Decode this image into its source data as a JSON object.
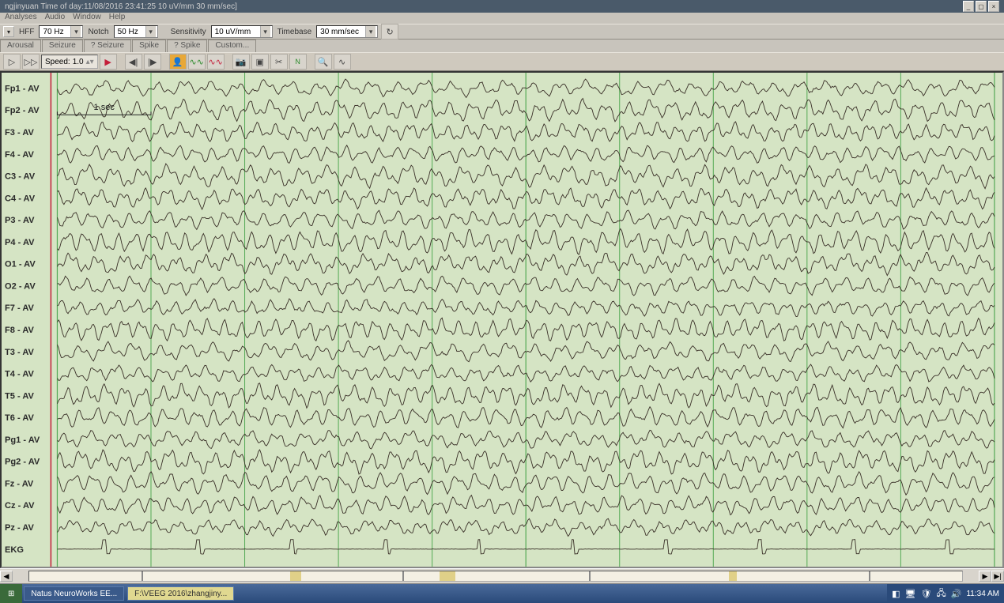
{
  "titlebar": "ngjinyuan  Time of day:11/08/2016 23:41:25  10 uV/mm  30 mm/sec]",
  "menu": [
    "Analyses",
    "Audio",
    "Window",
    "Help"
  ],
  "params": {
    "hff_label": "HFF",
    "hff_value": "70 Hz",
    "notch_label": "Notch",
    "notch_value": "50 Hz",
    "sens_label": "Sensitivity",
    "sens_value": "10 uV/mm",
    "tb_label": "Timebase",
    "tb_value": "30 mm/sec"
  },
  "tabs": [
    "Arousal",
    "Seizure",
    "? Seizure",
    "Spike",
    "? Spike",
    "Custom..."
  ],
  "speed_label": "Speed:",
  "speed_value": "1.0",
  "time_scale_label": "1 sec",
  "eeg": {
    "bg_color": "#d5e4c4",
    "grid_color": "#55aa55",
    "trace_color": "#3a3028",
    "label_font": "11px",
    "n_seconds": 10,
    "channels": [
      "Fp1 - AV",
      "Fp2 - AV",
      "F3 - AV",
      "F4 - AV",
      "C3 - AV",
      "C4 - AV",
      "P3 - AV",
      "P4 - AV",
      "O1 - AV",
      "O2 - AV",
      "F7 - AV",
      "F8 - AV",
      "T3 - AV",
      "T4 - AV",
      "T5 - AV",
      "T6 - AV",
      "Pg1 - AV",
      "Pg2 - AV",
      "Fz - AV",
      "Cz - AV",
      "Pz - AV",
      "EKG"
    ],
    "wave_params": {
      "samples": 700,
      "base_amplitude": 7,
      "freq_low": 3.5,
      "freq_high": 9,
      "noise": 2.5,
      "ekg_amplitude": 3
    }
  },
  "taskbar": {
    "start": "",
    "items": [
      "Natus NeuroWorks EE...",
      "F:\\VEEG 2016\\zhangjiny..."
    ],
    "clock": "11:34 AM"
  }
}
